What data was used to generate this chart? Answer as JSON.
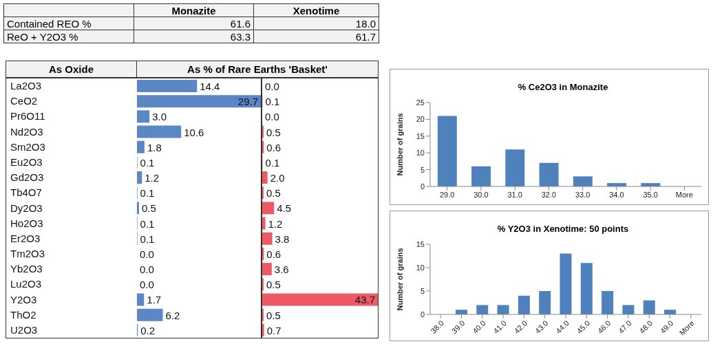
{
  "chart_data": [
    {
      "type": "other",
      "categories": [
        "Contained REO %",
        "ReO + Y2O3 %"
      ],
      "series": [
        {
          "name": "Monazite",
          "values": [
            61.6,
            63.3
          ],
          "value_labels": [
            "61.6",
            "63.3"
          ]
        },
        {
          "name": "Xenotime",
          "values": [
            18.0,
            61.7
          ],
          "value_labels": [
            "18.0",
            "61.7"
          ]
        }
      ]
    },
    {
      "type": "bar",
      "orientation": "horizontal",
      "title": "As % of Rare Earths 'Basket'",
      "ylabel": "As Oxide",
      "categories": [
        "La2O3",
        "CeO2",
        "Pr6O11",
        "Nd2O3",
        "Sm2O3",
        "Eu2O3",
        "Gd2O3",
        "Tb4O7",
        "Dy2O3",
        "Ho2O3",
        "Er2O3",
        "Tm2O3",
        "Yb2O3",
        "Lu2O3",
        "Y2O3",
        "ThO2",
        "U2O3"
      ],
      "series": [
        {
          "color": "#5b87c5",
          "values": [
            14.4,
            29.7,
            3.0,
            10.6,
            1.8,
            0.1,
            1.2,
            0.1,
            0.5,
            0.1,
            0.1,
            0.0,
            0.0,
            0.0,
            1.7,
            6.2,
            0.2
          ],
          "value_labels": [
            "14.4",
            "29.7",
            "3.0",
            "10.6",
            "1.8",
            "0.1",
            "1.2",
            "0.1",
            "0.5",
            "0.1",
            "0.1",
            "0.0",
            "0.0",
            "0.0",
            "1.7",
            "6.2",
            "0.2"
          ]
        }
      ],
      "tick_labels": "y"
    },
    {
      "type": "bar",
      "orientation": "horizontal",
      "categories": [
        "La2O3",
        "CeO2",
        "Pr6O11",
        "Nd2O3",
        "Sm2O3",
        "Eu2O3",
        "Gd2O3",
        "Tb4O7",
        "Dy2O3",
        "Ho2O3",
        "Er2O3",
        "Tm2O3",
        "Yb2O3",
        "Lu2O3",
        "Y2O3",
        "ThO2",
        "U2O3"
      ],
      "series": [
        {
          "color": "#ee5a64",
          "values": [
            0.0,
            0.1,
            0.0,
            0.5,
            0.6,
            0.1,
            2.0,
            0.5,
            4.5,
            1.2,
            3.8,
            0.6,
            3.6,
            0.5,
            43.7,
            0.5,
            0.7
          ],
          "value_labels": [
            "0.0",
            "0.1",
            "0.0",
            "0.5",
            "0.6",
            "0.1",
            "2.0",
            "0.5",
            "4.5",
            "1.2",
            "3.8",
            "0.6",
            "3.6",
            "0.5",
            "43.7",
            "0.5",
            "0.7"
          ]
        }
      ],
      "tick_labels": false
    },
    {
      "type": "bar",
      "title": "% Ce2O3 in Monazite",
      "ylabel": "Number of grains",
      "categories": [
        "29.0",
        "30.0",
        "31.0",
        "32.0",
        "33.0",
        "34.0",
        "35.0",
        "More"
      ],
      "series": [
        {
          "color": "#4f81bd",
          "values": [
            21,
            6,
            11,
            7,
            3,
            1,
            1,
            0
          ]
        }
      ],
      "ylim": [
        0,
        25
      ],
      "yticks": [
        0,
        5,
        10,
        15,
        20,
        25
      ]
    },
    {
      "type": "bar",
      "title": "% Y2O3 in Xenotime: 50 points",
      "ylabel": "Number of grains",
      "categories": [
        "38.0",
        "39.0",
        "40.0",
        "41.0",
        "42.0",
        "43.0",
        "44.0",
        "45.0",
        "46.0",
        "47.0",
        "48.0",
        "49.0",
        "More"
      ],
      "series": [
        {
          "color": "#4f81bd",
          "values": [
            0,
            1,
            2,
            2,
            4,
            5,
            13,
            11,
            5,
            2,
            3,
            1,
            0
          ]
        }
      ],
      "ylim": [
        0,
        15
      ],
      "yticks": [
        0,
        5,
        10,
        15
      ]
    }
  ]
}
